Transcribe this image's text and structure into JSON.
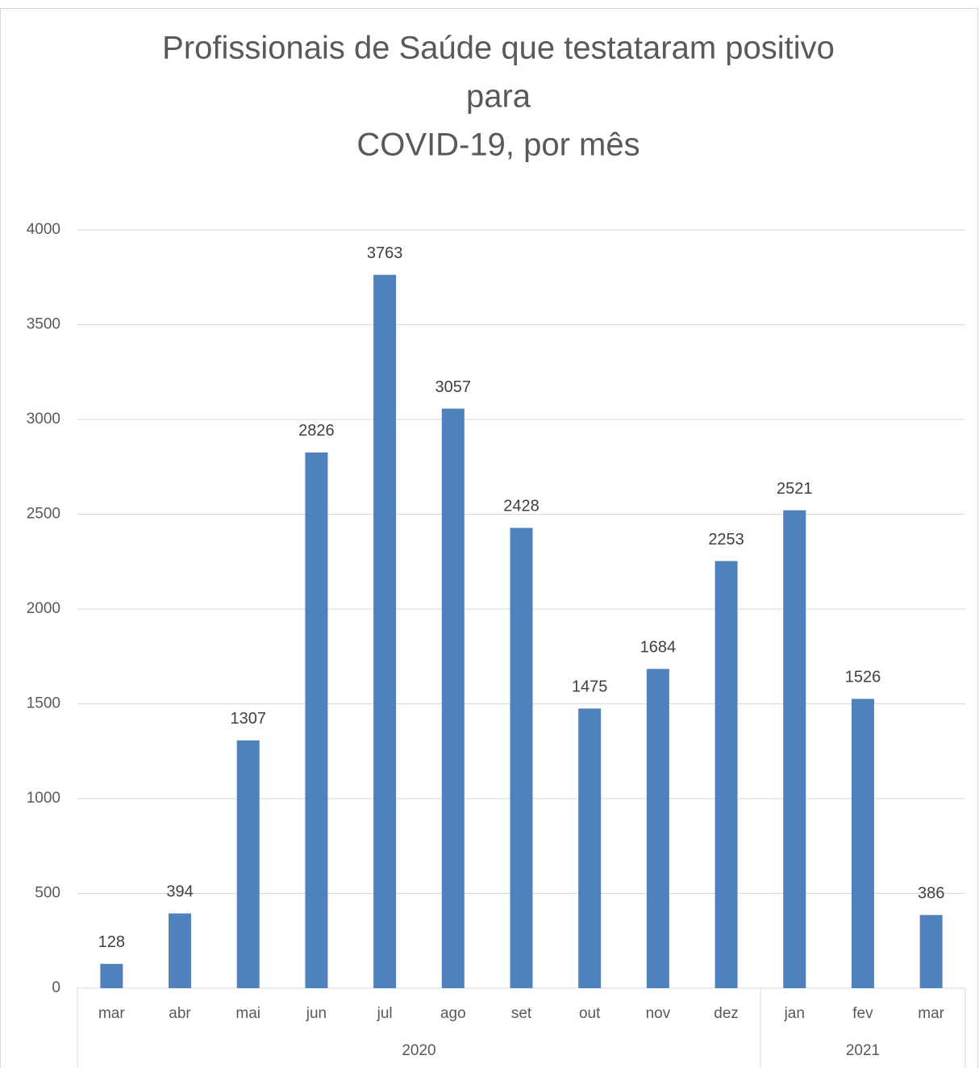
{
  "chart_data": {
    "type": "bar",
    "title": [
      "Profissionais de Saúde que testataram positivo",
      "para",
      "COVID-19, por mês"
    ],
    "groups": [
      {
        "label": "2020",
        "categories": [
          "mar",
          "abr",
          "mai",
          "jun",
          "jul",
          "ago",
          "set",
          "out",
          "nov",
          "dez"
        ]
      },
      {
        "label": "2021",
        "categories": [
          "jan",
          "fev",
          "mar"
        ]
      }
    ],
    "values": [
      128,
      394,
      1307,
      2826,
      3763,
      3057,
      2428,
      1475,
      1684,
      2253,
      2521,
      1526,
      386
    ],
    "color": "#4f81bd",
    "ylim": [
      0,
      4000
    ],
    "yticks": [
      0,
      500,
      1000,
      1500,
      2000,
      2500,
      3000,
      3500,
      4000
    ],
    "grid": true
  }
}
